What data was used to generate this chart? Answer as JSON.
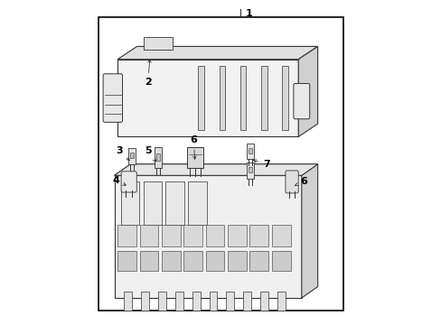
{
  "background_color": "#ffffff",
  "border_color": "#000000",
  "line_color": "#333333",
  "text_color": "#000000",
  "fig_width": 4.89,
  "fig_height": 3.6,
  "dpi": 100
}
